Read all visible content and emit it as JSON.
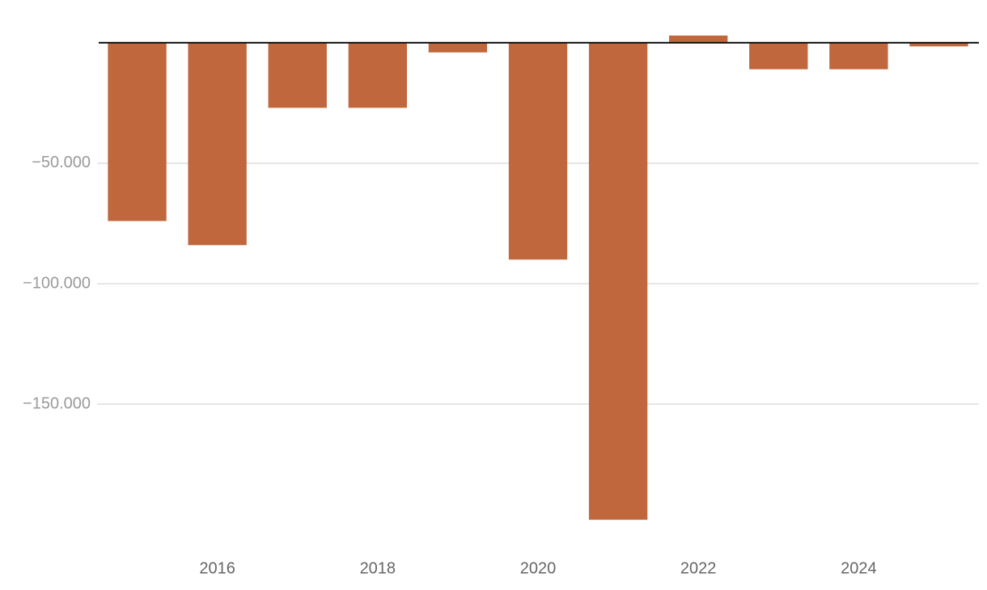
{
  "chart_data": {
    "type": "bar",
    "categories": [
      null,
      "2016",
      null,
      "2018",
      null,
      "2020",
      null,
      "2022",
      null,
      "2024",
      null
    ],
    "values": [
      -74000,
      -84000,
      -27000,
      -27000,
      -4000,
      -90000,
      -198000,
      3000,
      -11000,
      -11000,
      -1500
    ],
    "color": "#c0673e",
    "ylim": [
      -205000,
      5000
    ],
    "yticks": [
      {
        "value": -150000,
        "label": "−150.000"
      },
      {
        "value": -100000,
        "label": "−100.000"
      },
      {
        "value": -50000,
        "label": "−50.000"
      }
    ],
    "grid": true
  }
}
